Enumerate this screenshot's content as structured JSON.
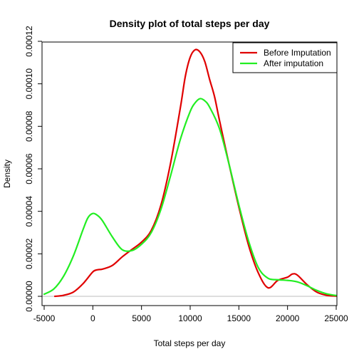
{
  "chart_data": {
    "type": "line",
    "title": "Density plot of total steps per day",
    "xlabel": "Total steps per day",
    "ylabel": "Density",
    "xlim": [
      -5000,
      26000
    ],
    "ylim": [
      0,
      0.00012
    ],
    "x_ticks": [
      -5000,
      0,
      5000,
      10000,
      15000,
      20000,
      25000
    ],
    "x_tick_labels": [
      "-5000",
      "0",
      "5000",
      "10000",
      "15000",
      "20000",
      "25000"
    ],
    "y_ticks": [
      0,
      2e-05,
      4e-05,
      6e-05,
      8e-05,
      0.0001,
      0.00012
    ],
    "y_tick_labels": [
      "0.00000",
      "0.00002",
      "0.00004",
      "0.00006",
      "0.00008",
      "0.00010",
      "0.00012"
    ],
    "grid": false,
    "baseline": 0,
    "legend_position": "top-right",
    "series": [
      {
        "name": "Before Imputation",
        "color": "#e00000",
        "x": [
          -3900,
          -3000,
          -2000,
          -1000,
          0,
          500,
          1000,
          2000,
          3000,
          4000,
          5000,
          6000,
          7000,
          8000,
          9000,
          9500,
          10000,
          10500,
          11000,
          11500,
          12000,
          12500,
          13000,
          14000,
          15000,
          16000,
          17000,
          18000,
          19000,
          20000,
          20500,
          21000,
          22000,
          23000,
          24000,
          25000,
          26000
        ],
        "y": [
          0,
          5e-07,
          2e-06,
          6e-06,
          1.15e-05,
          1.25e-05,
          1.28e-05,
          1.45e-05,
          1.85e-05,
          2.2e-05,
          2.55e-05,
          3.1e-05,
          4.3e-05,
          6.3e-05,
          8.9e-05,
          0.0001035,
          0.0001125,
          0.000116,
          0.000115,
          0.0001105,
          0.000102,
          9.4e-05,
          8.3e-05,
          6.2e-05,
          4.2e-05,
          2.4e-05,
          1.1e-05,
          4e-06,
          7.5e-06,
          9e-06,
          1.05e-05,
          1e-05,
          5.5e-06,
          2e-06,
          5e-07,
          1e-07,
          0
        ]
      },
      {
        "name": "After imputation",
        "color": "#22ee22",
        "x": [
          -5000,
          -4000,
          -3000,
          -2000,
          -1000,
          -500,
          0,
          500,
          1000,
          2000,
          3000,
          4000,
          5000,
          6000,
          7000,
          8000,
          9000,
          10000,
          10500,
          11000,
          11500,
          12000,
          13000,
          14000,
          15000,
          16000,
          17000,
          18000,
          19000,
          20000,
          21000,
          22000,
          23000,
          24000,
          25000,
          26000
        ],
        "y": [
          1e-06,
          3.5e-06,
          9.5e-06,
          1.9e-05,
          3.15e-05,
          3.7e-05,
          3.9e-05,
          3.8e-05,
          3.55e-05,
          2.8e-05,
          2.2e-05,
          2.15e-05,
          2.45e-05,
          3e-05,
          4.1e-05,
          5.7e-05,
          7.4e-05,
          8.7e-05,
          9.1e-05,
          9.3e-05,
          9.2e-05,
          8.9e-05,
          7.9e-05,
          6.2e-05,
          4.3e-05,
          2.6e-05,
          1.35e-05,
          8.5e-06,
          7.8e-06,
          7.5e-06,
          6.8e-06,
          5e-06,
          2.8e-06,
          1.2e-06,
          4e-07,
          1e-07
        ]
      }
    ]
  }
}
